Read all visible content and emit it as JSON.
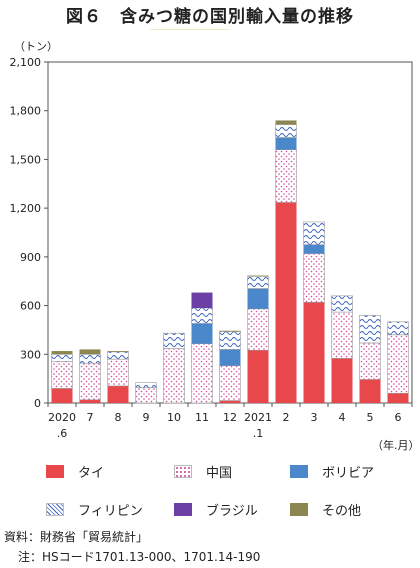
{
  "title": "図６　含みつ糖の国別輸入量の推移",
  "unit_label": "（トン）",
  "axis_unit": "（年.月）",
  "source": "資料：財務省「貿易統計」",
  "note": "注：HSコード1701.13-000、1701.14-190",
  "chart_data": {
    "type": "bar",
    "stacked": true,
    "categories": [
      "2020\n.6",
      "7",
      "8",
      "9",
      "10",
      "11",
      "12",
      "2021\n.1",
      "2",
      "3",
      "4",
      "5",
      "6"
    ],
    "ylim": [
      0,
      2100
    ],
    "yticks": [
      "0",
      "300",
      "600",
      "900",
      "1,200",
      "1,500",
      "1,800",
      "2,100"
    ],
    "ylabel": "（トン）",
    "xlabel": "（年.月）",
    "grid": false,
    "legend_position": "bottom",
    "series": [
      {
        "name": "タイ",
        "color": "#e8484b",
        "pattern": "solid",
        "values": [
          90,
          20,
          105,
          0,
          0,
          0,
          15,
          325,
          1235,
          620,
          275,
          145,
          60
        ]
      },
      {
        "name": "中国",
        "color": "#d24ca0",
        "pattern": "dots",
        "values": [
          165,
          225,
          165,
          95,
          335,
          365,
          215,
          255,
          325,
          300,
          285,
          225,
          360
        ]
      },
      {
        "name": "ボリビア",
        "color": "#4a87cb",
        "pattern": "solid",
        "values": [
          0,
          0,
          0,
          0,
          0,
          125,
          100,
          125,
          75,
          55,
          0,
          0,
          0
        ]
      },
      {
        "name": "フィリピン",
        "color": "#3d66c0",
        "pattern": "waves",
        "values": [
          45,
          55,
          45,
          30,
          95,
          95,
          110,
          75,
          80,
          140,
          100,
          170,
          80
        ]
      },
      {
        "name": "ブラジル",
        "color": "#6b3fa4",
        "pattern": "solid",
        "values": [
          0,
          0,
          0,
          0,
          0,
          95,
          0,
          0,
          0,
          0,
          0,
          0,
          0
        ]
      },
      {
        "name": "その他",
        "color": "#8c8750",
        "pattern": "solid",
        "values": [
          20,
          30,
          5,
          0,
          0,
          0,
          5,
          5,
          25,
          0,
          0,
          0,
          0
        ]
      }
    ]
  }
}
